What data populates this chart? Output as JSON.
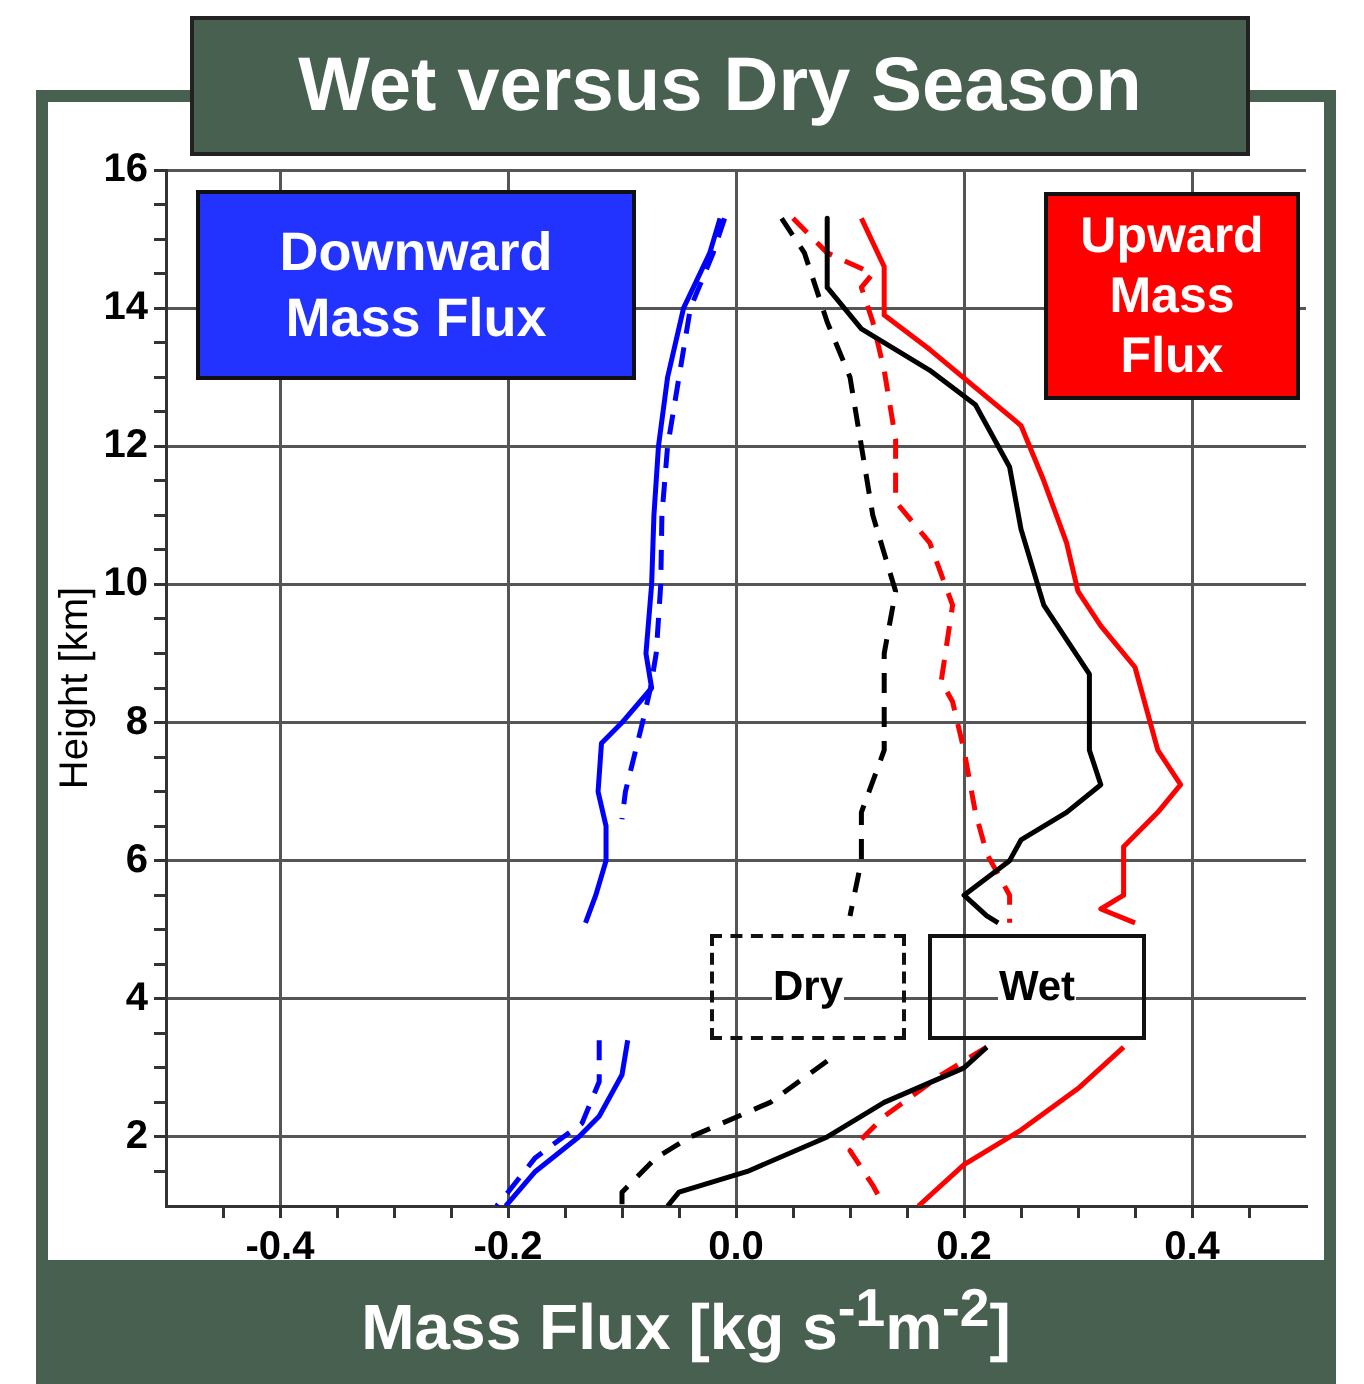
{
  "chart_data": {
    "type": "line",
    "title": "Wet versus Dry Season",
    "xlabel": "Mass Flux [kg s$^{-1}$m$^{-2}$]",
    "ylabel": "Height [km]",
    "annotations": [
      "Downward Mass Flux",
      "Upward Mass Flux",
      "Dry",
      "Wet"
    ],
    "xlim": [
      -0.5,
      0.5
    ],
    "xticks": [
      {
        "value": -0.45,
        "label": null
      },
      {
        "value": -0.4,
        "label": "-0.4"
      },
      {
        "value": -0.35,
        "label": null
      },
      {
        "value": -0.3,
        "label": null
      },
      {
        "value": -0.25,
        "label": null
      },
      {
        "value": -0.2,
        "label": "-0.2"
      },
      {
        "value": -0.15,
        "label": null
      },
      {
        "value": -0.1,
        "label": null
      },
      {
        "value": -0.05,
        "label": null
      },
      {
        "value": 0,
        "label": "0.0"
      },
      {
        "value": 0.05,
        "label": null
      },
      {
        "value": 0.1,
        "label": null
      },
      {
        "value": 0.15,
        "label": null
      },
      {
        "value": 0.2,
        "label": "0.2"
      },
      {
        "value": 0.25,
        "label": null
      },
      {
        "value": 0.3,
        "label": null
      },
      {
        "value": 0.35,
        "label": null
      },
      {
        "value": 0.4,
        "label": "0.4"
      },
      {
        "value": 0.45,
        "label": null
      }
    ],
    "ylim": [
      1,
      16
    ],
    "yticks": [
      {
        "value": 1.5,
        "label": null
      },
      2,
      {
        "value": 2.5,
        "label": null
      },
      {
        "value": 3,
        "label": null
      },
      {
        "value": 3.5,
        "label": null
      },
      4,
      {
        "value": 4.5,
        "label": null
      },
      {
        "value": 5,
        "label": null
      },
      {
        "value": 5.5,
        "label": null
      },
      6,
      {
        "value": 6.5,
        "label": null
      },
      {
        "value": 7,
        "label": null
      },
      {
        "value": 7.5,
        "label": null
      },
      8,
      {
        "value": 8.5,
        "label": null
      },
      {
        "value": 9,
        "label": null
      },
      {
        "value": 9.5,
        "label": null
      },
      10,
      {
        "value": 10.5,
        "label": null
      },
      {
        "value": 11,
        "label": null
      },
      {
        "value": 11.5,
        "label": null
      },
      12,
      {
        "value": 12.5,
        "label": null
      },
      {
        "value": 13,
        "label": null
      },
      {
        "value": 13.5,
        "label": null
      },
      14,
      {
        "value": 14.5,
        "label": null
      },
      {
        "value": 15,
        "label": null
      },
      {
        "value": 15.5,
        "label": null
      },
      16
    ],
    "grid": true,
    "marker": "none",
    "series": [
      {
        "color": "#0000ff",
        "line_style": "solid",
        "x": [
          -0.014,
          -0.023,
          -0.046,
          -0.06,
          -0.068,
          -0.072,
          -0.074,
          -0.079,
          -0.074,
          -0.1,
          -0.118,
          -0.121,
          -0.114,
          -0.114,
          -0.123,
          -0.132,
          null,
          -0.095,
          -0.1,
          -0.12,
          -0.138,
          -0.176,
          -0.202
        ],
        "values": [
          15.3,
          14.8,
          14,
          13,
          12,
          11,
          10,
          9,
          8.5,
          8,
          7.7,
          7,
          6.5,
          6,
          5.5,
          5.1,
          null,
          3.4,
          2.9,
          2.3,
          2,
          1.5,
          1
        ]
      },
      {
        "color": "#0000ff",
        "line_style": "dashed",
        "x": [
          -0.01,
          -0.02,
          -0.04,
          -0.05,
          -0.06,
          -0.065,
          -0.066,
          -0.07,
          -0.075,
          -0.082,
          -0.097,
          -0.1,
          null,
          -0.12,
          -0.12,
          -0.135,
          -0.176,
          -0.2,
          -0.21
        ],
        "values": [
          15.3,
          14.8,
          14,
          13,
          12,
          11,
          10,
          9,
          8.5,
          8,
          7,
          6.6,
          null,
          3.4,
          2.8,
          2.2,
          1.7,
          1.2,
          1
        ]
      },
      {
        "color": "#000000",
        "line_style": "solid",
        "x": [
          0.08,
          0.08,
          0.11,
          0.17,
          0.21,
          0.24,
          0.25,
          0.27,
          0.29,
          0.31,
          0.31,
          0.32,
          0.29,
          0.25,
          0.24,
          0.2,
          0.22,
          0.23,
          null,
          0.22,
          0.2,
          0.13,
          0.08,
          0.01,
          -0.05,
          -0.06
        ],
        "values": [
          15.3,
          14.3,
          13.7,
          13.1,
          12.6,
          11.7,
          10.8,
          9.7,
          9.2,
          8.7,
          7.6,
          7.1,
          6.7,
          6.3,
          6,
          5.5,
          5.2,
          5.1,
          null,
          3.3,
          3,
          2.5,
          2,
          1.5,
          1.2,
          1
        ]
      },
      {
        "color": "#000000",
        "line_style": "dashed",
        "x": [
          0.04,
          0.06,
          0.08,
          0.1,
          0.11,
          0.12,
          0.14,
          0.13,
          0.13,
          0.13,
          0.11,
          0.11,
          0.1,
          null,
          0.08,
          0.03,
          -0.04,
          -0.07,
          -0.1,
          -0.1
        ],
        "values": [
          15.3,
          14.8,
          13.8,
          13,
          12,
          11,
          9.9,
          9,
          8.5,
          7.6,
          6.7,
          6,
          5.2,
          null,
          3.1,
          2.5,
          2,
          1.7,
          1.2,
          1
        ]
      },
      {
        "color": "#ff0000",
        "line_style": "solid",
        "x": [
          0.11,
          0.13,
          0.13,
          0.17,
          0.25,
          0.27,
          0.29,
          0.3,
          0.32,
          0.35,
          0.37,
          0.39,
          0.37,
          0.34,
          0.34,
          0.32,
          0.35,
          null,
          0.34,
          0.3,
          0.25,
          0.2,
          0.16
        ],
        "values": [
          15.3,
          14.6,
          13.9,
          13.4,
          12.3,
          11.5,
          10.6,
          9.9,
          9.4,
          8.8,
          7.6,
          7.1,
          6.7,
          6.2,
          5.5,
          5.3,
          5.1,
          null,
          3.3,
          2.7,
          2.1,
          1.6,
          1
        ]
      },
      {
        "color": "#ff0000",
        "line_style": "dashed",
        "x": [
          0.05,
          0.08,
          0.12,
          0.11,
          0.12,
          0.13,
          0.14,
          0.14,
          0.17,
          0.19,
          0.18,
          0.19,
          0.2,
          0.21,
          0.22,
          0.24,
          0.24,
          null,
          0.22,
          0.18,
          0.13,
          0.1,
          0.12,
          0.13
        ],
        "values": [
          15.3,
          14.8,
          14.5,
          14.3,
          13.8,
          13.1,
          12.1,
          11.2,
          10.6,
          9.7,
          8.6,
          8.3,
          7.6,
          6.7,
          6.1,
          5.5,
          5.1,
          null,
          3.3,
          2.9,
          2.3,
          1.8,
          1.3,
          1
        ]
      }
    ]
  }
}
